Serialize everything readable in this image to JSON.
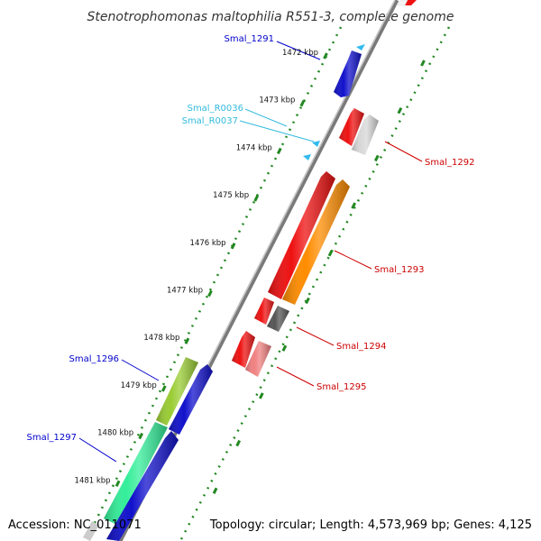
{
  "title": "Stenotrophomonas maltophilia R551-3, complete genome",
  "footer": {
    "accession": "Accession: NC_011071",
    "stats": "Topology: circular; Length: 4,573,969 bp; Genes: 4,125"
  },
  "scale": {
    "unit": "kbp",
    "ticks": [
      1472,
      1473,
      1474,
      1475,
      1476,
      1477,
      1478,
      1479,
      1480,
      1481
    ]
  },
  "genes": [
    {
      "id": "Smal_1291",
      "label_color": "#0000cc"
    },
    {
      "id": "Smal_R0036",
      "label_color": "#33bbdd"
    },
    {
      "id": "Smal_R0037",
      "label_color": "#33bbdd"
    },
    {
      "id": "Smal_1292",
      "label_color": "#cc0000"
    },
    {
      "id": "Smal_1293",
      "label_color": "#cc0000"
    },
    {
      "id": "Smal_1294",
      "label_color": "#cc0000"
    },
    {
      "id": "Smal_1295",
      "label_color": "#cc0000"
    },
    {
      "id": "Smal_1296",
      "label_color": "#0000cc"
    },
    {
      "id": "Smal_1297",
      "label_color": "#0000cc"
    }
  ],
  "colors": {
    "backbone": "#8a8a8a",
    "dots": "#228822",
    "tick_marks": "#228822"
  }
}
